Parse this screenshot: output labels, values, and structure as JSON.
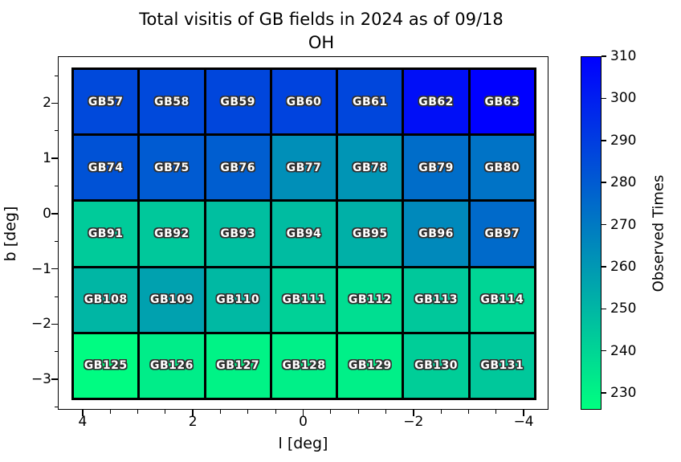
{
  "title": {
    "line1": "Total visitis of GB fields in 2024 as of 09/18",
    "line2": "OH"
  },
  "chart_data": {
    "type": "heatmap",
    "title": "Total visitis of GB fields in 2024 as of 09/18 OH",
    "xlabel": "l [deg]",
    "ylabel": "b [deg]",
    "colorbar_label": "Observed Times",
    "vmin": 226,
    "vmax": 310,
    "cmap": {
      "name": "winter_r",
      "low": "#00ff80",
      "high": "#0000ff"
    },
    "grid_edge_color": "#000000",
    "cell_label_color": "#ffffff",
    "xlim": [
      4.45,
      -4.45
    ],
    "ylim": [
      -3.55,
      2.85
    ],
    "grid_extent": {
      "l": [
        4.2,
        -4.2
      ],
      "b": [
        2.65,
        -3.35
      ]
    },
    "x_ticks": {
      "values": [
        4,
        2,
        0,
        -2,
        -4
      ],
      "labels": [
        "4",
        "2",
        "0",
        "−2",
        "−4"
      ],
      "minor_step": 0.5
    },
    "y_ticks": {
      "values": [
        2,
        1,
        0,
        -1,
        -2,
        -3
      ],
      "labels": [
        "2",
        "1",
        "0",
        "−1",
        "−2",
        "−3"
      ],
      "minor_step": 0.5
    },
    "colorbar_ticks": [
      230,
      240,
      250,
      260,
      270,
      280,
      290,
      300,
      310
    ],
    "rows": [
      {
        "fields": [
          {
            "name": "GB57",
            "value": 286
          },
          {
            "name": "GB58",
            "value": 286
          },
          {
            "name": "GB59",
            "value": 287
          },
          {
            "name": "GB60",
            "value": 288
          },
          {
            "name": "GB61",
            "value": 287
          },
          {
            "name": "GB62",
            "value": 305
          },
          {
            "name": "GB63",
            "value": 310
          }
        ]
      },
      {
        "fields": [
          {
            "name": "GB74",
            "value": 283
          },
          {
            "name": "GB75",
            "value": 280
          },
          {
            "name": "GB76",
            "value": 279
          },
          {
            "name": "GB77",
            "value": 263
          },
          {
            "name": "GB78",
            "value": 261
          },
          {
            "name": "GB79",
            "value": 274
          },
          {
            "name": "GB80",
            "value": 272
          }
        ]
      },
      {
        "fields": [
          {
            "name": "GB91",
            "value": 243
          },
          {
            "name": "GB92",
            "value": 244
          },
          {
            "name": "GB93",
            "value": 247
          },
          {
            "name": "GB94",
            "value": 248
          },
          {
            "name": "GB95",
            "value": 252
          },
          {
            "name": "GB96",
            "value": 265
          },
          {
            "name": "GB97",
            "value": 275
          }
        ]
      },
      {
        "fields": [
          {
            "name": "GB108",
            "value": 250
          },
          {
            "name": "GB109",
            "value": 257
          },
          {
            "name": "GB110",
            "value": 249
          },
          {
            "name": "GB111",
            "value": 241
          },
          {
            "name": "GB112",
            "value": 237
          },
          {
            "name": "GB113",
            "value": 244
          },
          {
            "name": "GB114",
            "value": 240
          }
        ]
      },
      {
        "fields": [
          {
            "name": "GB125",
            "value": 227
          },
          {
            "name": "GB126",
            "value": 232
          },
          {
            "name": "GB127",
            "value": 230
          },
          {
            "name": "GB128",
            "value": 231
          },
          {
            "name": "GB129",
            "value": 231
          },
          {
            "name": "GB130",
            "value": 242
          },
          {
            "name": "GB131",
            "value": 244
          }
        ]
      }
    ]
  }
}
